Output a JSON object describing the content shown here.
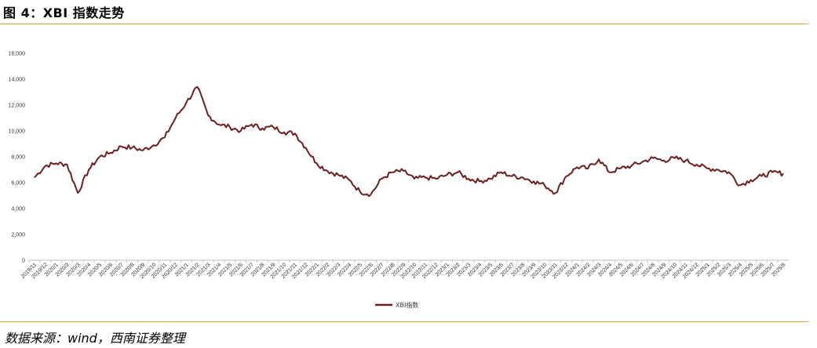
{
  "figure": {
    "title": "图 4：XBI 指数走势",
    "source": "数据来源：wind，西南证券整理"
  },
  "colors": {
    "line": "#6B1E1E",
    "rule": "#E2A23C",
    "axis": "#BFBFBF"
  },
  "chart_data": {
    "type": "line",
    "title": "",
    "xlabel": "",
    "ylabel": "",
    "ylim": [
      0,
      16000
    ],
    "grid": false,
    "legend_position": "bottom",
    "y_ticks": [
      "0",
      "2,000",
      "4,000",
      "6,000",
      "8,000",
      "10,000",
      "12,000",
      "14,000",
      "16,000"
    ],
    "x_ticks": [
      "2019/11",
      "2019/12",
      "2020/1",
      "2020/2",
      "2020/3",
      "2020/4",
      "2020/5",
      "2020/6",
      "2020/7",
      "2020/8",
      "2020/9",
      "2020/10",
      "2020/11",
      "2020/12",
      "2021/1",
      "2021/2",
      "2021/3",
      "2021/4",
      "2021/5",
      "2021/6",
      "2021/7",
      "2021/8",
      "2021/9",
      "2021/10",
      "2021/11",
      "2021/12",
      "2022/1",
      "2022/2",
      "2022/3",
      "2022/4",
      "2022/5",
      "2022/6",
      "2022/7",
      "2022/8",
      "2022/9",
      "2022/10",
      "2022/11",
      "2022/12",
      "2023/1",
      "2023/2",
      "2023/3",
      "2023/4",
      "2023/5",
      "2023/6",
      "2023/7",
      "2023/8",
      "2023/9",
      "2023/10",
      "2023/11",
      "2023/12",
      "2024/1",
      "2024/2",
      "2024/3",
      "2024/4",
      "2024/5",
      "2024/6",
      "2024/7",
      "2024/8",
      "2024/9",
      "2024/10",
      "2024/11",
      "2024/12",
      "2025/1",
      "2025/2",
      "2025/3",
      "2025/4",
      "2025/5",
      "2025/6",
      "2025/7",
      "2025/8"
    ],
    "series": [
      {
        "name": "XBI指数",
        "x": [
          "2019/11",
          "2019/12",
          "2020/1",
          "2020/2",
          "2020/3",
          "2020/4",
          "2020/5",
          "2020/6",
          "2020/7",
          "2020/8",
          "2020/9",
          "2020/10",
          "2020/11",
          "2020/12",
          "2021/1",
          "2021/2",
          "2021/3",
          "2021/4",
          "2021/5",
          "2021/6",
          "2021/7",
          "2021/8",
          "2021/9",
          "2021/10",
          "2021/11",
          "2021/12",
          "2022/1",
          "2022/2",
          "2022/3",
          "2022/4",
          "2022/5",
          "2022/6",
          "2022/7",
          "2022/8",
          "2022/9",
          "2022/10",
          "2022/11",
          "2022/12",
          "2023/1",
          "2023/2",
          "2023/3",
          "2023/4",
          "2023/5",
          "2023/6",
          "2023/7",
          "2023/8",
          "2023/9",
          "2023/10",
          "2023/11",
          "2023/12",
          "2024/1",
          "2024/2",
          "2024/3",
          "2024/4",
          "2024/5",
          "2024/6",
          "2024/7",
          "2024/8",
          "2024/9",
          "2024/10",
          "2024/11",
          "2024/12",
          "2025/1",
          "2025/2",
          "2025/3",
          "2025/4",
          "2025/5",
          "2025/6",
          "2025/7",
          "2025/8"
        ],
        "values": [
          6400,
          7300,
          7500,
          7400,
          5200,
          7000,
          8000,
          8300,
          8800,
          8700,
          8500,
          8900,
          9500,
          11000,
          12200,
          13400,
          11200,
          10500,
          10300,
          10000,
          10500,
          10200,
          10300,
          9900,
          9800,
          8700,
          7500,
          6900,
          6600,
          6200,
          5300,
          5100,
          6300,
          6800,
          6900,
          6300,
          6400,
          6300,
          6600,
          6800,
          6300,
          6100,
          6300,
          6800,
          6500,
          6400,
          6100,
          5800,
          5200,
          6500,
          7200,
          7100,
          7800,
          6800,
          7100,
          7300,
          7600,
          7900,
          7700,
          7900,
          7700,
          7400,
          7100,
          7000,
          6800,
          5800,
          6200,
          6500,
          6800,
          6700
        ]
      }
    ]
  }
}
